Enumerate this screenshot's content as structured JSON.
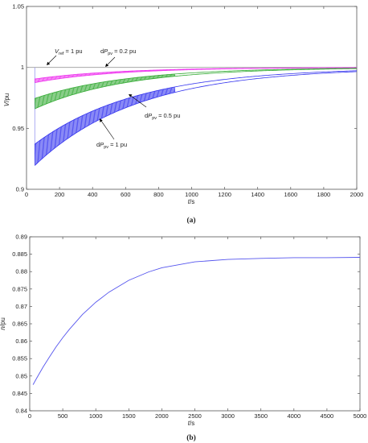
{
  "chart_data": [
    {
      "type": "line",
      "panel_label": "(a)",
      "xlabel_var": "t",
      "xlabel_unit": "/s",
      "ylabel_var": "V",
      "ylabel_unit": "/pu",
      "xlim": [
        0,
        2000
      ],
      "ylim": [
        0.9,
        1.05
      ],
      "x_ticks": [
        "0",
        "200",
        "400",
        "600",
        "800",
        "1000",
        "1200",
        "1400",
        "1600",
        "1800",
        "2000"
      ],
      "y_ticks": [
        "0.9",
        "0.95",
        "1",
        "1.05"
      ],
      "grid": false,
      "series": [
        {
          "name": "Vref = 1 pu",
          "color": "#9a9a9a",
          "x": [
            0,
            2000
          ],
          "y": [
            1.0,
            1.0
          ]
        },
        {
          "name": "dPpv = 0.2 pu",
          "color": "#ee33ee",
          "start": 50,
          "y_upper_start": 0.9905,
          "y_lower_start": 0.9875,
          "y_final": 1.0,
          "tau": 500
        },
        {
          "name": "dPpv = 0.5 pu",
          "color": "#33aa33",
          "start": 50,
          "y_upper_start": 0.9745,
          "y_lower_start": 0.966,
          "y_final": 1.0,
          "tau": 550
        },
        {
          "name": "dPpv = 1 pu",
          "color": "#3333ee",
          "start": 50,
          "y_upper_start": 0.937,
          "y_lower_start": 0.9195,
          "y_final": 1.0,
          "tau": 620
        }
      ],
      "annotations": [
        {
          "main": "V",
          "sub": "ref",
          "suffix": " = 1 pu"
        },
        {
          "prefix": "d",
          "main": "P",
          "sub": "pv",
          "suffix": " = 0.2 pu"
        },
        {
          "prefix": "d",
          "main": "P",
          "sub": "pv",
          "suffix": " = 0.5 pu"
        },
        {
          "prefix": "d",
          "main": "P",
          "sub": "pv",
          "suffix": " = 1 pu"
        }
      ]
    },
    {
      "type": "line",
      "panel_label": "(b)",
      "xlabel_var": "t",
      "xlabel_unit": "/s",
      "ylabel_var": "n",
      "ylabel_unit": "/pu",
      "xlim": [
        0,
        5000
      ],
      "ylim": [
        0.84,
        0.89
      ],
      "x_ticks": [
        "0",
        "500",
        "1000",
        "1500",
        "2000",
        "2500",
        "3000",
        "3500",
        "4000",
        "4500",
        "5000"
      ],
      "y_ticks": [
        "0.84",
        "0.845",
        "0.85",
        "0.855",
        "0.86",
        "0.865",
        "0.87",
        "0.875",
        "0.88",
        "0.885",
        "0.89"
      ],
      "grid": false,
      "series": [
        {
          "name": "n",
          "color": "#5555ee",
          "x": [
            50,
            100,
            200,
            300,
            400,
            500,
            600,
            800,
            1000,
            1200,
            1500,
            1800,
            2000,
            2500,
            3000,
            3500,
            4000,
            4500,
            5000
          ],
          "y": [
            0.8475,
            0.8492,
            0.8525,
            0.8555,
            0.8584,
            0.861,
            0.8634,
            0.8677,
            0.8712,
            0.8741,
            0.8775,
            0.8799,
            0.8811,
            0.8828,
            0.8835,
            0.8838,
            0.884,
            0.884,
            0.8841
          ]
        }
      ]
    }
  ]
}
